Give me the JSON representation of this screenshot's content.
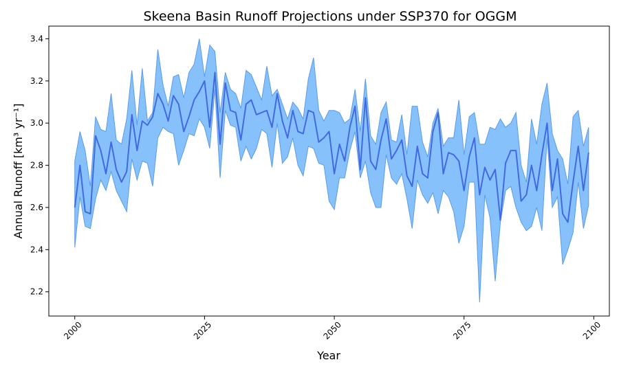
{
  "chart_data": {
    "type": "area",
    "title": "Skeena Basin Runoff Projections under SSP370 for OGGM",
    "xlabel": "Year",
    "ylabel": "Annual Runoff [km³ yr⁻¹]",
    "xlim": [
      1995,
      2103
    ],
    "ylim": [
      2.085,
      3.46
    ],
    "xticks": [
      2000,
      2025,
      2050,
      2075,
      2100
    ],
    "yticks": [
      2.2,
      2.4,
      2.6,
      2.8,
      3.0,
      3.2,
      3.4
    ],
    "grid": false,
    "colors": {
      "line": "#4169e1",
      "band": "#87c1fb",
      "band_edge": "#5a9be8"
    },
    "x": [
      2000,
      2001,
      2002,
      2003,
      2004,
      2005,
      2006,
      2007,
      2008,
      2009,
      2010,
      2011,
      2012,
      2013,
      2014,
      2015,
      2016,
      2017,
      2018,
      2019,
      2020,
      2021,
      2022,
      2023,
      2024,
      2025,
      2026,
      2027,
      2028,
      2029,
      2030,
      2031,
      2032,
      2033,
      2034,
      2035,
      2036,
      2037,
      2038,
      2039,
      2040,
      2041,
      2042,
      2043,
      2044,
      2045,
      2046,
      2047,
      2048,
      2049,
      2050,
      2051,
      2052,
      2053,
      2054,
      2055,
      2056,
      2057,
      2058,
      2059,
      2060,
      2061,
      2062,
      2063,
      2064,
      2065,
      2066,
      2067,
      2068,
      2069,
      2070,
      2071,
      2072,
      2073,
      2074,
      2075,
      2076,
      2077,
      2078,
      2079,
      2080,
      2081,
      2082,
      2083,
      2084,
      2085,
      2086,
      2087,
      2088,
      2089,
      2090,
      2091,
      2092,
      2093,
      2094,
      2095,
      2096,
      2097,
      2098,
      2099
    ],
    "series": [
      {
        "role": "mean",
        "values": [
          2.6,
          2.8,
          2.58,
          2.57,
          2.94,
          2.87,
          2.76,
          2.91,
          2.78,
          2.72,
          2.77,
          3.04,
          2.87,
          3.01,
          2.99,
          3.03,
          3.14,
          3.09,
          3.01,
          3.13,
          3.09,
          2.96,
          3.03,
          3.11,
          3.15,
          3.2,
          2.98,
          3.24,
          2.9,
          3.19,
          3.06,
          3.05,
          2.92,
          3.09,
          3.11,
          3.04,
          3.05,
          3.06,
          2.98,
          3.14,
          3.01,
          2.93,
          3.06,
          2.96,
          2.95,
          3.06,
          3.05,
          2.91,
          2.93,
          2.96,
          2.76,
          2.9,
          2.82,
          2.98,
          3.08,
          2.78,
          3.12,
          2.82,
          2.78,
          2.92,
          3.02,
          2.83,
          2.87,
          2.92,
          2.75,
          2.7,
          2.89,
          2.76,
          2.74,
          2.96,
          3.05,
          2.76,
          2.86,
          2.85,
          2.82,
          2.68,
          2.84,
          2.93,
          2.66,
          2.79,
          2.73,
          2.78,
          2.54,
          2.81,
          2.87,
          2.87,
          2.63,
          2.66,
          2.8,
          2.68,
          2.85,
          3.0,
          2.68,
          2.83,
          2.57,
          2.53,
          2.72,
          2.89,
          2.68,
          2.86
        ]
      },
      {
        "role": "upper",
        "values": [
          2.82,
          2.96,
          2.87,
          2.7,
          3.03,
          2.97,
          2.96,
          3.14,
          2.92,
          2.9,
          3.02,
          3.25,
          2.99,
          3.26,
          3.01,
          3.05,
          3.35,
          3.18,
          3.08,
          3.22,
          3.23,
          3.12,
          3.24,
          3.28,
          3.4,
          3.22,
          3.37,
          3.34,
          3.05,
          3.24,
          3.16,
          3.14,
          3.07,
          3.25,
          3.23,
          3.17,
          3.11,
          3.27,
          3.13,
          3.16,
          3.09,
          3.02,
          3.1,
          3.07,
          3.02,
          3.21,
          3.31,
          3.06,
          3.01,
          3.06,
          3.06,
          3.05,
          3.0,
          3.02,
          3.16,
          2.96,
          3.21,
          2.94,
          2.9,
          3.05,
          3.1,
          2.92,
          2.91,
          3.04,
          2.85,
          3.08,
          3.08,
          2.91,
          2.84,
          3.0,
          3.07,
          2.89,
          2.93,
          2.93,
          3.11,
          2.85,
          3.03,
          3.05,
          2.9,
          2.9,
          2.98,
          2.97,
          3.02,
          2.98,
          3.0,
          3.05,
          2.8,
          2.72,
          3.02,
          2.9,
          3.09,
          3.19,
          2.95,
          2.87,
          2.83,
          2.71,
          3.03,
          3.06,
          2.89,
          2.98
        ]
      },
      {
        "role": "lower",
        "values": [
          2.41,
          2.65,
          2.51,
          2.5,
          2.64,
          2.73,
          2.68,
          2.77,
          2.68,
          2.63,
          2.58,
          2.83,
          2.73,
          2.82,
          2.81,
          2.7,
          2.93,
          2.98,
          2.96,
          2.95,
          2.8,
          2.87,
          2.95,
          2.94,
          3.02,
          2.98,
          2.88,
          3.16,
          2.74,
          3.06,
          2.99,
          2.98,
          2.82,
          2.89,
          2.83,
          2.88,
          2.97,
          2.95,
          2.79,
          3.0,
          2.81,
          2.84,
          2.93,
          2.8,
          2.75,
          2.89,
          2.88,
          2.81,
          2.8,
          2.63,
          2.59,
          2.74,
          2.74,
          2.87,
          2.96,
          2.74,
          2.82,
          2.67,
          2.6,
          2.6,
          2.85,
          2.74,
          2.71,
          2.76,
          2.64,
          2.5,
          2.73,
          2.66,
          2.62,
          2.67,
          2.57,
          2.68,
          2.65,
          2.58,
          2.43,
          2.51,
          2.72,
          2.72,
          2.15,
          2.66,
          2.55,
          2.25,
          2.53,
          2.68,
          2.7,
          2.6,
          2.53,
          2.49,
          2.51,
          2.6,
          2.49,
          2.93,
          2.6,
          2.65,
          2.33,
          2.4,
          2.48,
          2.72,
          2.5,
          2.61
        ]
      }
    ]
  }
}
